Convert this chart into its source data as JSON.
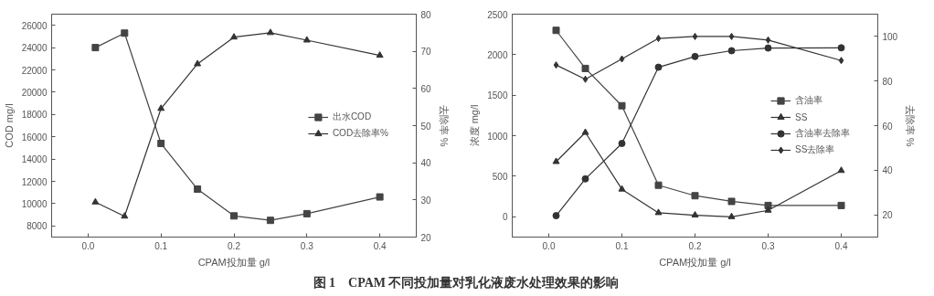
{
  "chart_data": [
    {
      "type": "line",
      "xlabel": "CPAM投加量 g/l",
      "ylabel": "COD mg/l",
      "y2label": "去除率 %",
      "x": [
        0.01,
        0.05,
        0.1,
        0.15,
        0.2,
        0.25,
        0.3,
        0.4
      ],
      "xlim": [
        -0.05,
        0.45
      ],
      "xticks": [
        {
          "value": 0,
          "label": "0.0"
        },
        0.1,
        0.2,
        0.3,
        0.4
      ],
      "ylim": [
        7000,
        27000
      ],
      "yticks": [
        8000,
        10000,
        12000,
        14000,
        16000,
        18000,
        20000,
        22000,
        24000,
        26000
      ],
      "y2lim": [
        20,
        80
      ],
      "y2ticks": [
        20,
        30,
        40,
        50,
        60,
        70,
        80
      ],
      "grid": false,
      "legend": "right",
      "line_style": "solid",
      "series": [
        {
          "name": "出水COD",
          "color": "#444444",
          "marker": "square",
          "values": [
            24000,
            25300,
            15400,
            11300,
            8900,
            8500,
            9100,
            10600
          ]
        },
        {
          "name": "COD去除率%",
          "color": "#333333",
          "marker": "triangle",
          "axis": "y2",
          "values": [
            29.4,
            25.6,
            54.6,
            66.6,
            73.8,
            75.0,
            73.0,
            68.9
          ]
        }
      ],
      "annotations": [
        "图 1　CPAM 不同投加量对乳化液废水处理效果的影响"
      ]
    },
    {
      "type": "line",
      "xlabel": "CPAM投加量 g/l",
      "ylabel": "浓度 mg/l",
      "y2label": "去除率 %",
      "x": [
        0.01,
        0.05,
        0.1,
        0.15,
        0.2,
        0.25,
        0.3,
        0.4
      ],
      "xlim": [
        -0.05,
        0.45
      ],
      "xticks": [
        {
          "value": 0,
          "label": "0.0"
        },
        0.1,
        0.2,
        0.3,
        0.4
      ],
      "ylim": [
        -250,
        2500
      ],
      "yticks": [
        0,
        500,
        1000,
        1500,
        2000,
        2500
      ],
      "y2lim": [
        10,
        110
      ],
      "y2ticks": [
        20,
        40,
        60,
        80,
        100
      ],
      "grid": false,
      "legend": "right",
      "line_style": "solid",
      "series": [
        {
          "name": "含油率",
          "color": "#444444",
          "marker": "square",
          "values": [
            2300,
            1830,
            1370,
            390,
            260,
            190,
            140,
            140
          ]
        },
        {
          "name": "SS",
          "color": "#333333",
          "marker": "triangle",
          "values": [
            680,
            1040,
            340,
            50,
            20,
            0,
            80,
            570
          ]
        },
        {
          "name": "含油率去除率",
          "color": "#333333",
          "marker": "circle",
          "axis": "y2",
          "values": [
            19.6,
            36.1,
            52.0,
            86.2,
            91.0,
            93.6,
            94.8,
            94.9
          ]
        },
        {
          "name": "SS去除率",
          "color": "#333333",
          "marker": "diamond",
          "axis": "y2",
          "values": [
            87.2,
            80.8,
            89.9,
            99.1,
            100,
            100,
            98.4,
            89.2
          ]
        }
      ]
    }
  ]
}
